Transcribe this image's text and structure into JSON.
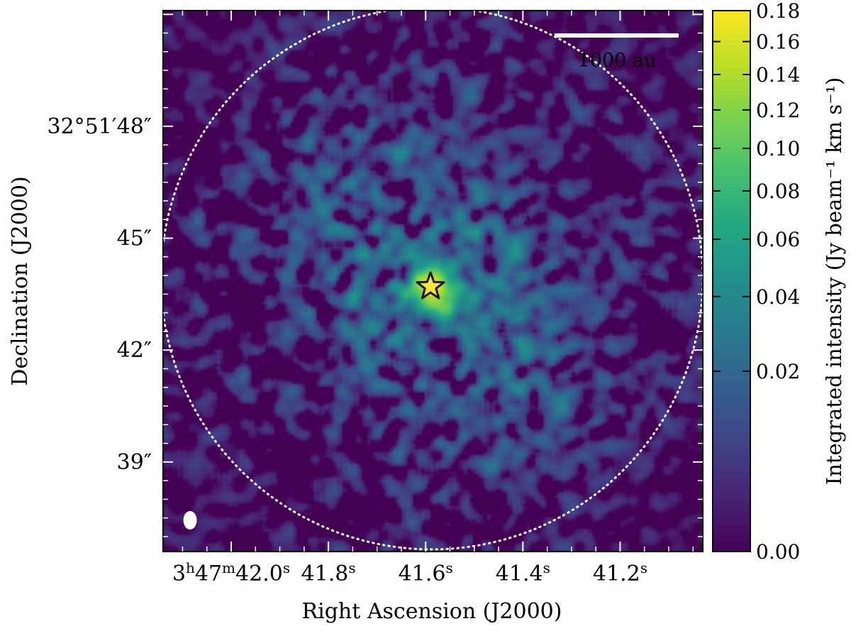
{
  "chart_data": {
    "type": "heatmap",
    "xlabel": "Right Ascension (J2000)",
    "ylabel": "Declination (J2000)",
    "colorbar_label": "Integrated intensity (Jy beam⁻¹ km s⁻¹)",
    "colormap": "viridis",
    "colorbar_scale": "sqrt",
    "colorbar_range": [
      0.0,
      0.18
    ],
    "colorbar_ticks": [
      {
        "value": 0.0,
        "label": "0.00"
      },
      {
        "value": 0.02,
        "label": "0.02"
      },
      {
        "value": 0.04,
        "label": "0.04"
      },
      {
        "value": 0.06,
        "label": "0.06"
      },
      {
        "value": 0.08,
        "label": "0.08"
      },
      {
        "value": 0.1,
        "label": "0.10"
      },
      {
        "value": 0.12,
        "label": "0.12"
      },
      {
        "value": 0.14,
        "label": "0.14"
      },
      {
        "value": 0.16,
        "label": "0.16"
      },
      {
        "value": 0.18,
        "label": "0.18"
      }
    ],
    "ra_range_s": [
      42.14,
      41.03
    ],
    "dec_range_arcsec": [
      36.6,
      51.1
    ],
    "x_ticks": [
      {
        "ra_s": 42.0,
        "parts": [
          [
            "3",
            ""
          ],
          [
            "h",
            "sup"
          ],
          [
            "47",
            ""
          ],
          [
            "m",
            "sup"
          ],
          [
            "42.0",
            ""
          ],
          [
            "s",
            "sup"
          ]
        ]
      },
      {
        "ra_s": 41.8,
        "parts": [
          [
            "41.8",
            ""
          ],
          [
            "s",
            "sup"
          ]
        ]
      },
      {
        "ra_s": 41.6,
        "parts": [
          [
            "41.6",
            ""
          ],
          [
            "s",
            "sup"
          ]
        ]
      },
      {
        "ra_s": 41.4,
        "parts": [
          [
            "41.4",
            ""
          ],
          [
            "s",
            "sup"
          ]
        ]
      },
      {
        "ra_s": 41.2,
        "parts": [
          [
            "41.2",
            ""
          ],
          [
            "s",
            "sup"
          ]
        ]
      }
    ],
    "y_ticks": [
      {
        "dec_arcsec": 48,
        "label": "32°51′48″"
      },
      {
        "dec_arcsec": 45,
        "label": "45″"
      },
      {
        "dec_arcsec": 42,
        "label": "42″"
      },
      {
        "dec_arcsec": 39,
        "label": "39″"
      }
    ],
    "source": {
      "marker": "star",
      "ra_s": 41.59,
      "dec_arcsec": 43.7,
      "color": "#f7e53a"
    },
    "emission_peak": 0.17,
    "primary_beam": {
      "style": "dotted",
      "color": "#ffffff"
    },
    "synthesized_beam": {
      "color": "#ffffff"
    },
    "scale_bar": {
      "label": "1000 au"
    }
  }
}
